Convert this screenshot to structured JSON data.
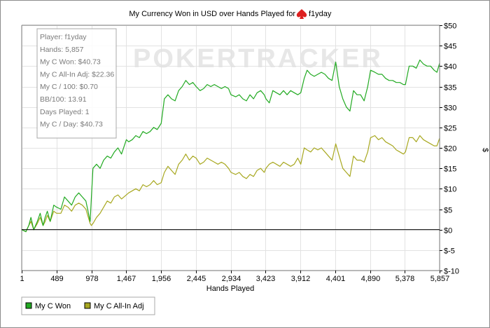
{
  "chart_data": {
    "type": "line",
    "title": "My Currency Won in USD over Hands Played for",
    "player_name": "f1yday",
    "xlabel": "Hands Played",
    "ylabel": "$",
    "xlim": [
      1,
      5857
    ],
    "ylim": [
      -10,
      50
    ],
    "x_ticks": [
      "1",
      "489",
      "978",
      "1,467",
      "1,956",
      "2,445",
      "2,934",
      "3,423",
      "3,912",
      "4,401",
      "4,890",
      "5,378",
      "5,857"
    ],
    "y_ticks": [
      "$50",
      "$45",
      "$40",
      "$35",
      "$30",
      "$25",
      "$20",
      "$15",
      "$10",
      "$5",
      "$0",
      "$-5",
      "$-10"
    ],
    "grid": true,
    "legend_position": "bottom-left",
    "watermark": "POKERTRACKER",
    "stats": [
      "Player: f1yday",
      "Hands: 5,857",
      "My C Won: $40.73",
      "My C All-In Adj: $22.36",
      "My C / 100: $0.70",
      "BB/100: 13.91",
      "Days Played: 1",
      "My C / Day: $40.73"
    ],
    "series": [
      {
        "name": "My C Won",
        "color": "#22aa22",
        "x": [
          1,
          60,
          100,
          130,
          170,
          220,
          260,
          300,
          330,
          360,
          400,
          450,
          489,
          550,
          600,
          650,
          700,
          750,
          800,
          850,
          900,
          960,
          978,
          1000,
          1050,
          1100,
          1150,
          1200,
          1250,
          1300,
          1350,
          1400,
          1467,
          1500,
          1550,
          1600,
          1650,
          1700,
          1750,
          1800,
          1850,
          1900,
          1956,
          2000,
          2050,
          2100,
          2150,
          2200,
          2250,
          2300,
          2350,
          2400,
          2445,
          2500,
          2550,
          2600,
          2650,
          2700,
          2750,
          2800,
          2850,
          2900,
          2934,
          3000,
          3050,
          3100,
          3150,
          3200,
          3250,
          3300,
          3350,
          3400,
          3423,
          3470,
          3520,
          3570,
          3620,
          3670,
          3720,
          3770,
          3820,
          3870,
          3912,
          3960,
          4000,
          4050,
          4100,
          4150,
          4200,
          4250,
          4300,
          4350,
          4401,
          4450,
          4500,
          4550,
          4600,
          4650,
          4700,
          4750,
          4800,
          4850,
          4890,
          4950,
          5000,
          5050,
          5100,
          5150,
          5200,
          5250,
          5300,
          5350,
          5378,
          5430,
          5480,
          5530,
          5580,
          5630,
          5680,
          5730,
          5780,
          5820,
          5857
        ],
        "y": [
          0,
          -0.5,
          1,
          3,
          0,
          2,
          4,
          1,
          3,
          4.5,
          2,
          6,
          5.5,
          5,
          8,
          7,
          6,
          8,
          9,
          8,
          7,
          2,
          8,
          15,
          16,
          15,
          17,
          18,
          17.5,
          19,
          20,
          18.5,
          22,
          21.5,
          22,
          23,
          22.5,
          24,
          23.5,
          24,
          25,
          24.5,
          26,
          32,
          33,
          32,
          31.5,
          34,
          35,
          36.5,
          35.5,
          36,
          35,
          34,
          34.5,
          35.5,
          35,
          35.5,
          35,
          34.5,
          35,
          34.5,
          33,
          32.5,
          33,
          32,
          31.5,
          33,
          32,
          33.5,
          34,
          33,
          32,
          31,
          34,
          33.5,
          33,
          34,
          33,
          34,
          33.5,
          33,
          33.5,
          37,
          39,
          38,
          37.5,
          38,
          38.5,
          38,
          37,
          36.5,
          41,
          35,
          32,
          30,
          29,
          34,
          33,
          33,
          31.5,
          35,
          39,
          38.5,
          38,
          38,
          37,
          36.5,
          36.5,
          36,
          36,
          35.5,
          35.5,
          40,
          40,
          39.5,
          41.5,
          40.5,
          40,
          40,
          39,
          38.5,
          40.7
        ]
      },
      {
        "name": "My C All-In Adj",
        "color": "#a8a820",
        "x": [
          1,
          60,
          100,
          130,
          170,
          220,
          260,
          300,
          330,
          360,
          400,
          450,
          489,
          550,
          600,
          650,
          700,
          750,
          800,
          850,
          900,
          960,
          978,
          1000,
          1050,
          1100,
          1150,
          1200,
          1250,
          1300,
          1350,
          1400,
          1467,
          1500,
          1550,
          1600,
          1650,
          1700,
          1750,
          1800,
          1850,
          1900,
          1956,
          2000,
          2050,
          2100,
          2150,
          2200,
          2250,
          2300,
          2350,
          2400,
          2445,
          2500,
          2550,
          2600,
          2650,
          2700,
          2750,
          2800,
          2850,
          2900,
          2934,
          3000,
          3050,
          3100,
          3150,
          3200,
          3250,
          3300,
          3350,
          3400,
          3423,
          3470,
          3520,
          3570,
          3620,
          3670,
          3720,
          3770,
          3820,
          3870,
          3912,
          3960,
          4000,
          4050,
          4100,
          4150,
          4200,
          4250,
          4300,
          4350,
          4401,
          4450,
          4500,
          4550,
          4600,
          4650,
          4700,
          4750,
          4800,
          4850,
          4890,
          4950,
          5000,
          5050,
          5100,
          5150,
          5200,
          5250,
          5300,
          5350,
          5378,
          5430,
          5480,
          5530,
          5580,
          5630,
          5680,
          5730,
          5780,
          5820,
          5857
        ],
        "y": [
          0,
          -0.5,
          1,
          2,
          0,
          1.5,
          3,
          1,
          2,
          3.5,
          2,
          4.5,
          4,
          4,
          6,
          5.5,
          4.5,
          6,
          6.5,
          6,
          5,
          1.5,
          1,
          1.5,
          3,
          4,
          5.5,
          7,
          6.5,
          8,
          8.5,
          7.5,
          8.5,
          9,
          9.5,
          10,
          9.5,
          11,
          10.5,
          11,
          12,
          11,
          11.5,
          14,
          15.5,
          14.5,
          13.5,
          16,
          17,
          18.5,
          17,
          18,
          17.5,
          16,
          16.5,
          17.5,
          17,
          16.5,
          16,
          16.5,
          16,
          15,
          14,
          13.5,
          14,
          13,
          12.5,
          13.5,
          13,
          14.5,
          15,
          14,
          15,
          16,
          16.5,
          16,
          15.5,
          16.5,
          16,
          15.5,
          16,
          17.5,
          16,
          20,
          19.5,
          19,
          20,
          19.5,
          20,
          19,
          18,
          17,
          21,
          18,
          15,
          14,
          13,
          18,
          17,
          17,
          16.5,
          19,
          22.5,
          23,
          22,
          22.5,
          21.5,
          21,
          20.5,
          19.5,
          19,
          18.5,
          19,
          22.5,
          22.5,
          21.5,
          23,
          22,
          21.5,
          21,
          20.5,
          20.5,
          22.36
        ]
      }
    ]
  }
}
